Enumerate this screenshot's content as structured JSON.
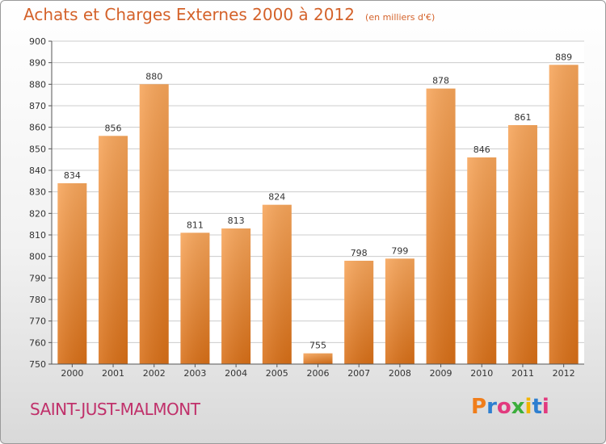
{
  "header": {
    "title": "Achats et Charges Externes 2000 à 2012",
    "subtitle": "(en milliers d'€)"
  },
  "footer": {
    "commune": "SAINT-JUST-MALMONT",
    "brand": "Proxiti",
    "brand_colors": [
      "#f07d1a",
      "#2e7fd0",
      "#e23a7e",
      "#3cae3c",
      "#f2b400",
      "#2e7fd0",
      "#e23a7e"
    ]
  },
  "chart_data": {
    "type": "bar",
    "title": "Achats et Charges Externes 2000 à 2012",
    "subtitle": "(en milliers d'€)",
    "categories": [
      "2000",
      "2001",
      "2002",
      "2003",
      "2004",
      "2005",
      "2006",
      "2007",
      "2008",
      "2009",
      "2010",
      "2011",
      "2012"
    ],
    "values": [
      834,
      856,
      880,
      811,
      813,
      824,
      755,
      798,
      799,
      878,
      846,
      861,
      889
    ],
    "ylim": [
      750,
      900
    ],
    "yticks": [
      750,
      760,
      770,
      780,
      790,
      800,
      810,
      820,
      830,
      840,
      850,
      860,
      870,
      880,
      890,
      900
    ],
    "grid": true,
    "bar_color_top": "#f7a55a",
    "bar_color_bottom": "#d86f17"
  }
}
